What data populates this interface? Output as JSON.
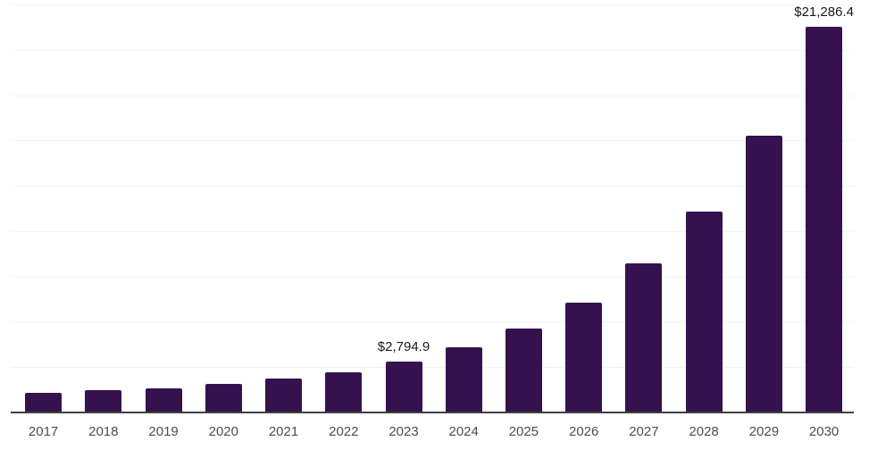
{
  "chart_data": {
    "type": "bar",
    "title": "",
    "xlabel": "",
    "ylabel": "",
    "categories": [
      "2017",
      "2018",
      "2019",
      "2020",
      "2021",
      "2022",
      "2023",
      "2024",
      "2025",
      "2026",
      "2027",
      "2028",
      "2029",
      "2030"
    ],
    "values": [
      1110,
      1230,
      1350,
      1570,
      1850,
      2200,
      2794.9,
      3590,
      4630,
      6070,
      8200,
      11100,
      15250,
      21286.4
    ],
    "value_labels": {
      "2023": "$2,794.9",
      "2030": "$21,286.4"
    },
    "ylim": [
      0,
      22500
    ],
    "gridline_step": 2500,
    "grid": "horizontal",
    "legend_position": "none",
    "colors": {
      "bar": "#35124E",
      "gridline": "#f4f4f4",
      "axis_line": "#3f3f3f",
      "tick_label": "#4d4d4d",
      "value_label": "#1a1a1a",
      "background": "#ffffff"
    }
  }
}
